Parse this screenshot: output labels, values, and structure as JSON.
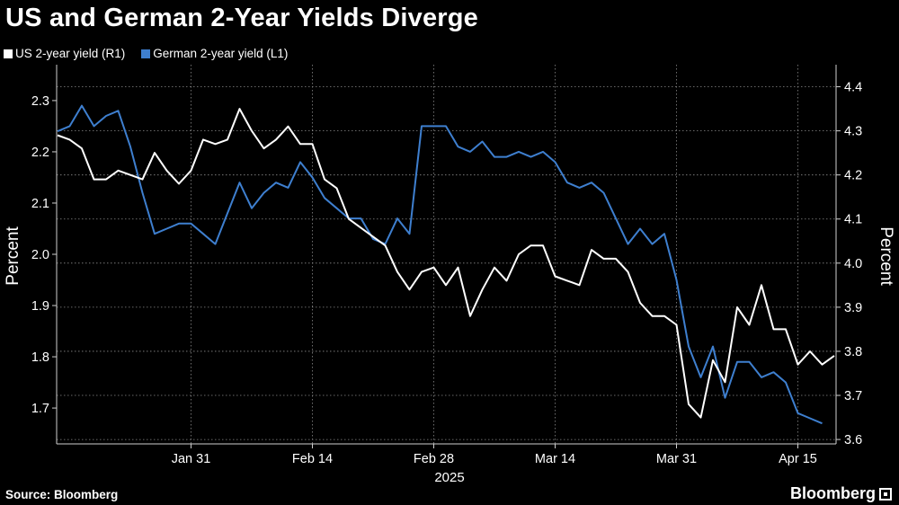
{
  "title": "US and German 2-Year Yields Diverge",
  "source": "Source: Bloomberg",
  "brand": "Bloomberg",
  "colors": {
    "us": "#ffffff",
    "german": "#3e7fcf",
    "grid": "#8a8a8a",
    "background": "#000000"
  },
  "chart_data": {
    "type": "line",
    "title": "US and German 2-Year Yields Diverge",
    "xlabel": "2025",
    "y_left_label": "Percent",
    "y_right_label": "Percent",
    "y_left_lim": [
      1.63,
      2.37
    ],
    "y_right_lim": [
      3.59,
      4.45
    ],
    "y_left_ticks": [
      "1.7",
      "1.8",
      "1.9",
      "2.0",
      "2.1",
      "2.2",
      "2.3"
    ],
    "y_right_ticks": [
      "3.6",
      "3.7",
      "3.8",
      "3.9",
      "4.0",
      "4.1",
      "4.2",
      "4.3",
      "4.4"
    ],
    "x_ticks": [
      "Jan 31",
      "Feb 14",
      "Feb 28",
      "Mar 14",
      "Mar 31",
      "Apr 15"
    ],
    "x_tick_index": [
      11,
      21,
      31,
      41,
      51,
      61
    ],
    "grid": true,
    "legend_position": "top-left",
    "series": [
      {
        "name": "US 2-year yield (R1)",
        "axis": "right",
        "values": [
          4.29,
          4.28,
          4.26,
          4.19,
          4.19,
          4.21,
          4.2,
          4.19,
          4.25,
          4.21,
          4.18,
          4.21,
          4.28,
          4.27,
          4.28,
          4.35,
          4.3,
          4.26,
          4.28,
          4.31,
          4.27,
          4.27,
          4.19,
          4.17,
          4.1,
          4.08,
          4.06,
          4.04,
          3.98,
          3.94,
          3.98,
          3.99,
          3.95,
          3.99,
          3.88,
          3.94,
          3.99,
          3.96,
          4.02,
          4.04,
          4.04,
          3.97,
          3.96,
          3.95,
          4.03,
          4.01,
          4.01,
          3.98,
          3.91,
          3.88,
          3.88,
          3.86,
          3.68,
          3.65,
          3.78,
          3.73,
          3.9,
          3.86,
          3.95,
          3.85,
          3.85,
          3.77,
          3.8,
          3.77,
          3.79
        ]
      },
      {
        "name": "German 2-year yield (L1)",
        "axis": "left",
        "values": [
          2.24,
          2.25,
          2.29,
          2.25,
          2.27,
          2.28,
          2.21,
          2.12,
          2.04,
          2.05,
          2.06,
          2.06,
          2.04,
          2.02,
          2.08,
          2.14,
          2.09,
          2.12,
          2.14,
          2.13,
          2.18,
          2.15,
          2.11,
          2.09,
          2.07,
          2.07,
          2.03,
          2.02,
          2.07,
          2.04,
          2.25,
          2.25,
          2.25,
          2.21,
          2.2,
          2.22,
          2.19,
          2.19,
          2.2,
          2.19,
          2.2,
          2.18,
          2.14,
          2.13,
          2.14,
          2.12,
          2.07,
          2.02,
          2.05,
          2.02,
          2.04,
          1.95,
          1.82,
          1.76,
          1.82,
          1.72,
          1.79,
          1.79,
          1.76,
          1.77,
          1.75,
          1.69,
          1.68,
          1.67
        ]
      }
    ]
  }
}
